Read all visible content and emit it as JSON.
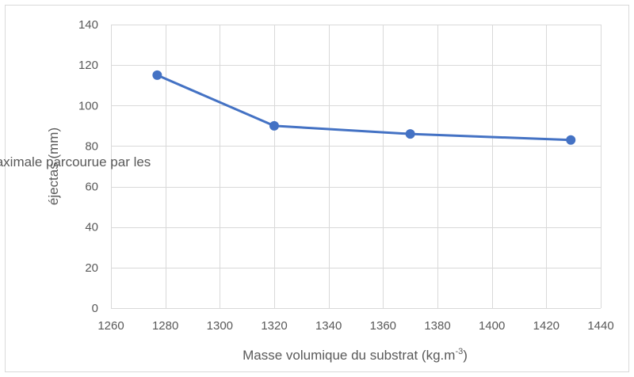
{
  "chart_data": {
    "type": "line",
    "title": "",
    "xlabel": "Masse volumique du substrat (kg.m",
    "xlabel_superscript": "-3",
    "xlabel_suffix": ")",
    "ylabel_lines": [
      "Distance maximale parcourue par les",
      "éjectas (mm)"
    ],
    "xlim": [
      1260,
      1440
    ],
    "ylim": [
      0,
      140
    ],
    "x_ticks": [
      "1260",
      "1280",
      "1300",
      "1320",
      "1340",
      "1360",
      "1380",
      "1400",
      "1420",
      "1440"
    ],
    "y_ticks": [
      "0",
      "20",
      "40",
      "60",
      "80",
      "100",
      "120",
      "140"
    ],
    "grid": true,
    "legend": "none",
    "series": [
      {
        "color": "#4472c4",
        "points": [
          {
            "x": 1277,
            "y": 115
          },
          {
            "x": 1320,
            "y": 90
          },
          {
            "x": 1370,
            "y": 86
          },
          {
            "x": 1429,
            "y": 83
          }
        ]
      }
    ]
  }
}
